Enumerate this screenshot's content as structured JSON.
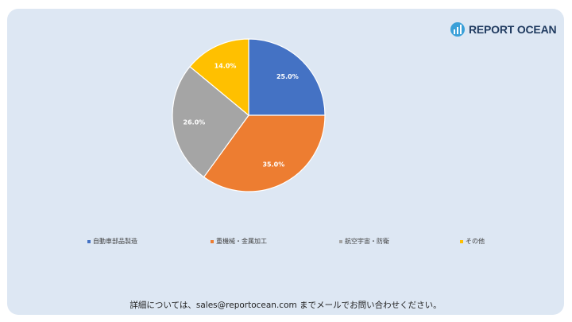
{
  "brand": {
    "name": "REPORT OCEAN",
    "icon": "bar-chart-logo-icon"
  },
  "colors": {
    "card_bg": "#dde7f3",
    "brand": "#1f3a5f"
  },
  "chart_data": {
    "type": "pie",
    "slices": [
      {
        "label": "自動車部品製造",
        "value": 25.0,
        "display": "25.0%",
        "color": "#4472c4"
      },
      {
        "label": "重機械・金属加工",
        "value": 35.0,
        "display": "35.0%",
        "color": "#ed7d31"
      },
      {
        "label": "航空宇宙・防衛",
        "value": 26.0,
        "display": "26.0%",
        "color": "#a5a5a5"
      },
      {
        "label": "その他",
        "value": 14.0,
        "display": "14.0%",
        "color": "#ffc000"
      }
    ],
    "legend_position": "bottom"
  },
  "footer": {
    "text": "詳細については、sales@reportocean.com までメールでお問い合わせください。"
  }
}
